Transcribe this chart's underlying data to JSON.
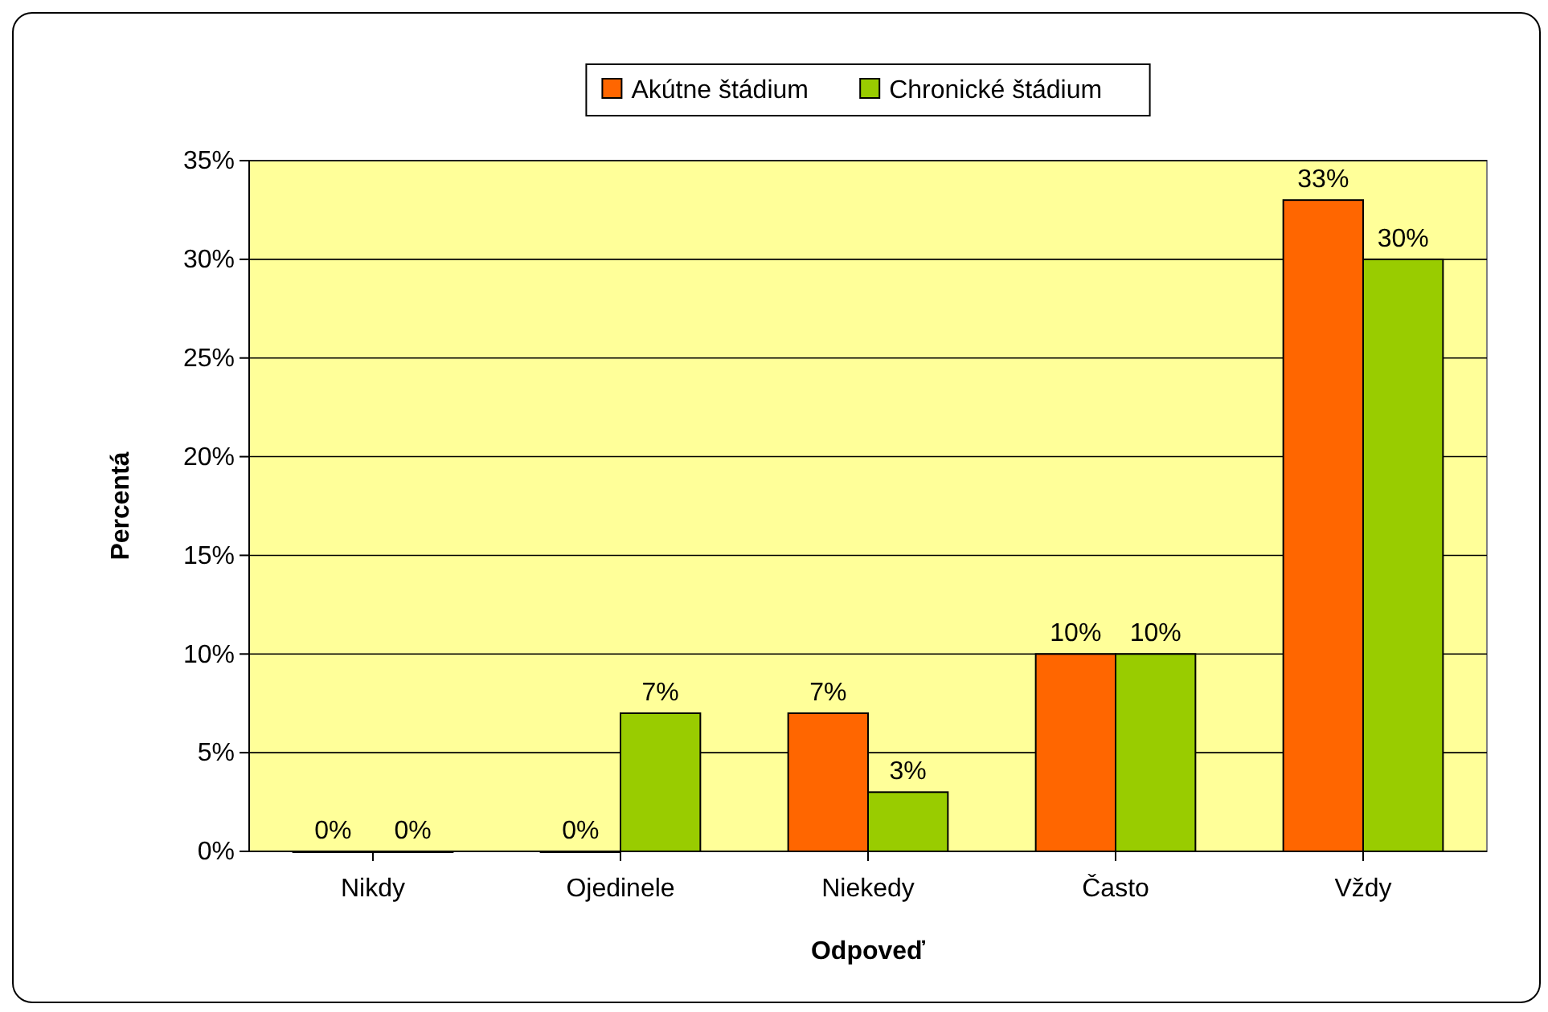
{
  "chart_data": {
    "type": "bar",
    "xlabel": "Odpoveď",
    "ylabel": "Percentá",
    "categories": [
      "Nikdy",
      "Ojedinele",
      "Niekedy",
      "Často",
      "Vždy"
    ],
    "series": [
      {
        "name": "Akútne štádium",
        "color": "#ff6600",
        "values": [
          0,
          0,
          7,
          10,
          33
        ],
        "value_labels": [
          "0%",
          "0%",
          "7%",
          "10%",
          "33%"
        ]
      },
      {
        "name": "Chronické štádium",
        "color": "#99cc00",
        "values": [
          0,
          7,
          3,
          10,
          30
        ],
        "value_labels": [
          "0%",
          "7%",
          "3%",
          "10%",
          "30%"
        ]
      }
    ],
    "ylim": [
      0,
      35
    ],
    "yticks": [
      {
        "value": 0,
        "label": "0%"
      },
      {
        "value": 5,
        "label": "5%"
      },
      {
        "value": 10,
        "label": "10%"
      },
      {
        "value": 15,
        "label": "15%"
      },
      {
        "value": 20,
        "label": "20%"
      },
      {
        "value": 25,
        "label": "25%"
      },
      {
        "value": 30,
        "label": "30%"
      },
      {
        "value": 35,
        "label": "35%"
      }
    ],
    "grid": "y",
    "legend": "top"
  }
}
